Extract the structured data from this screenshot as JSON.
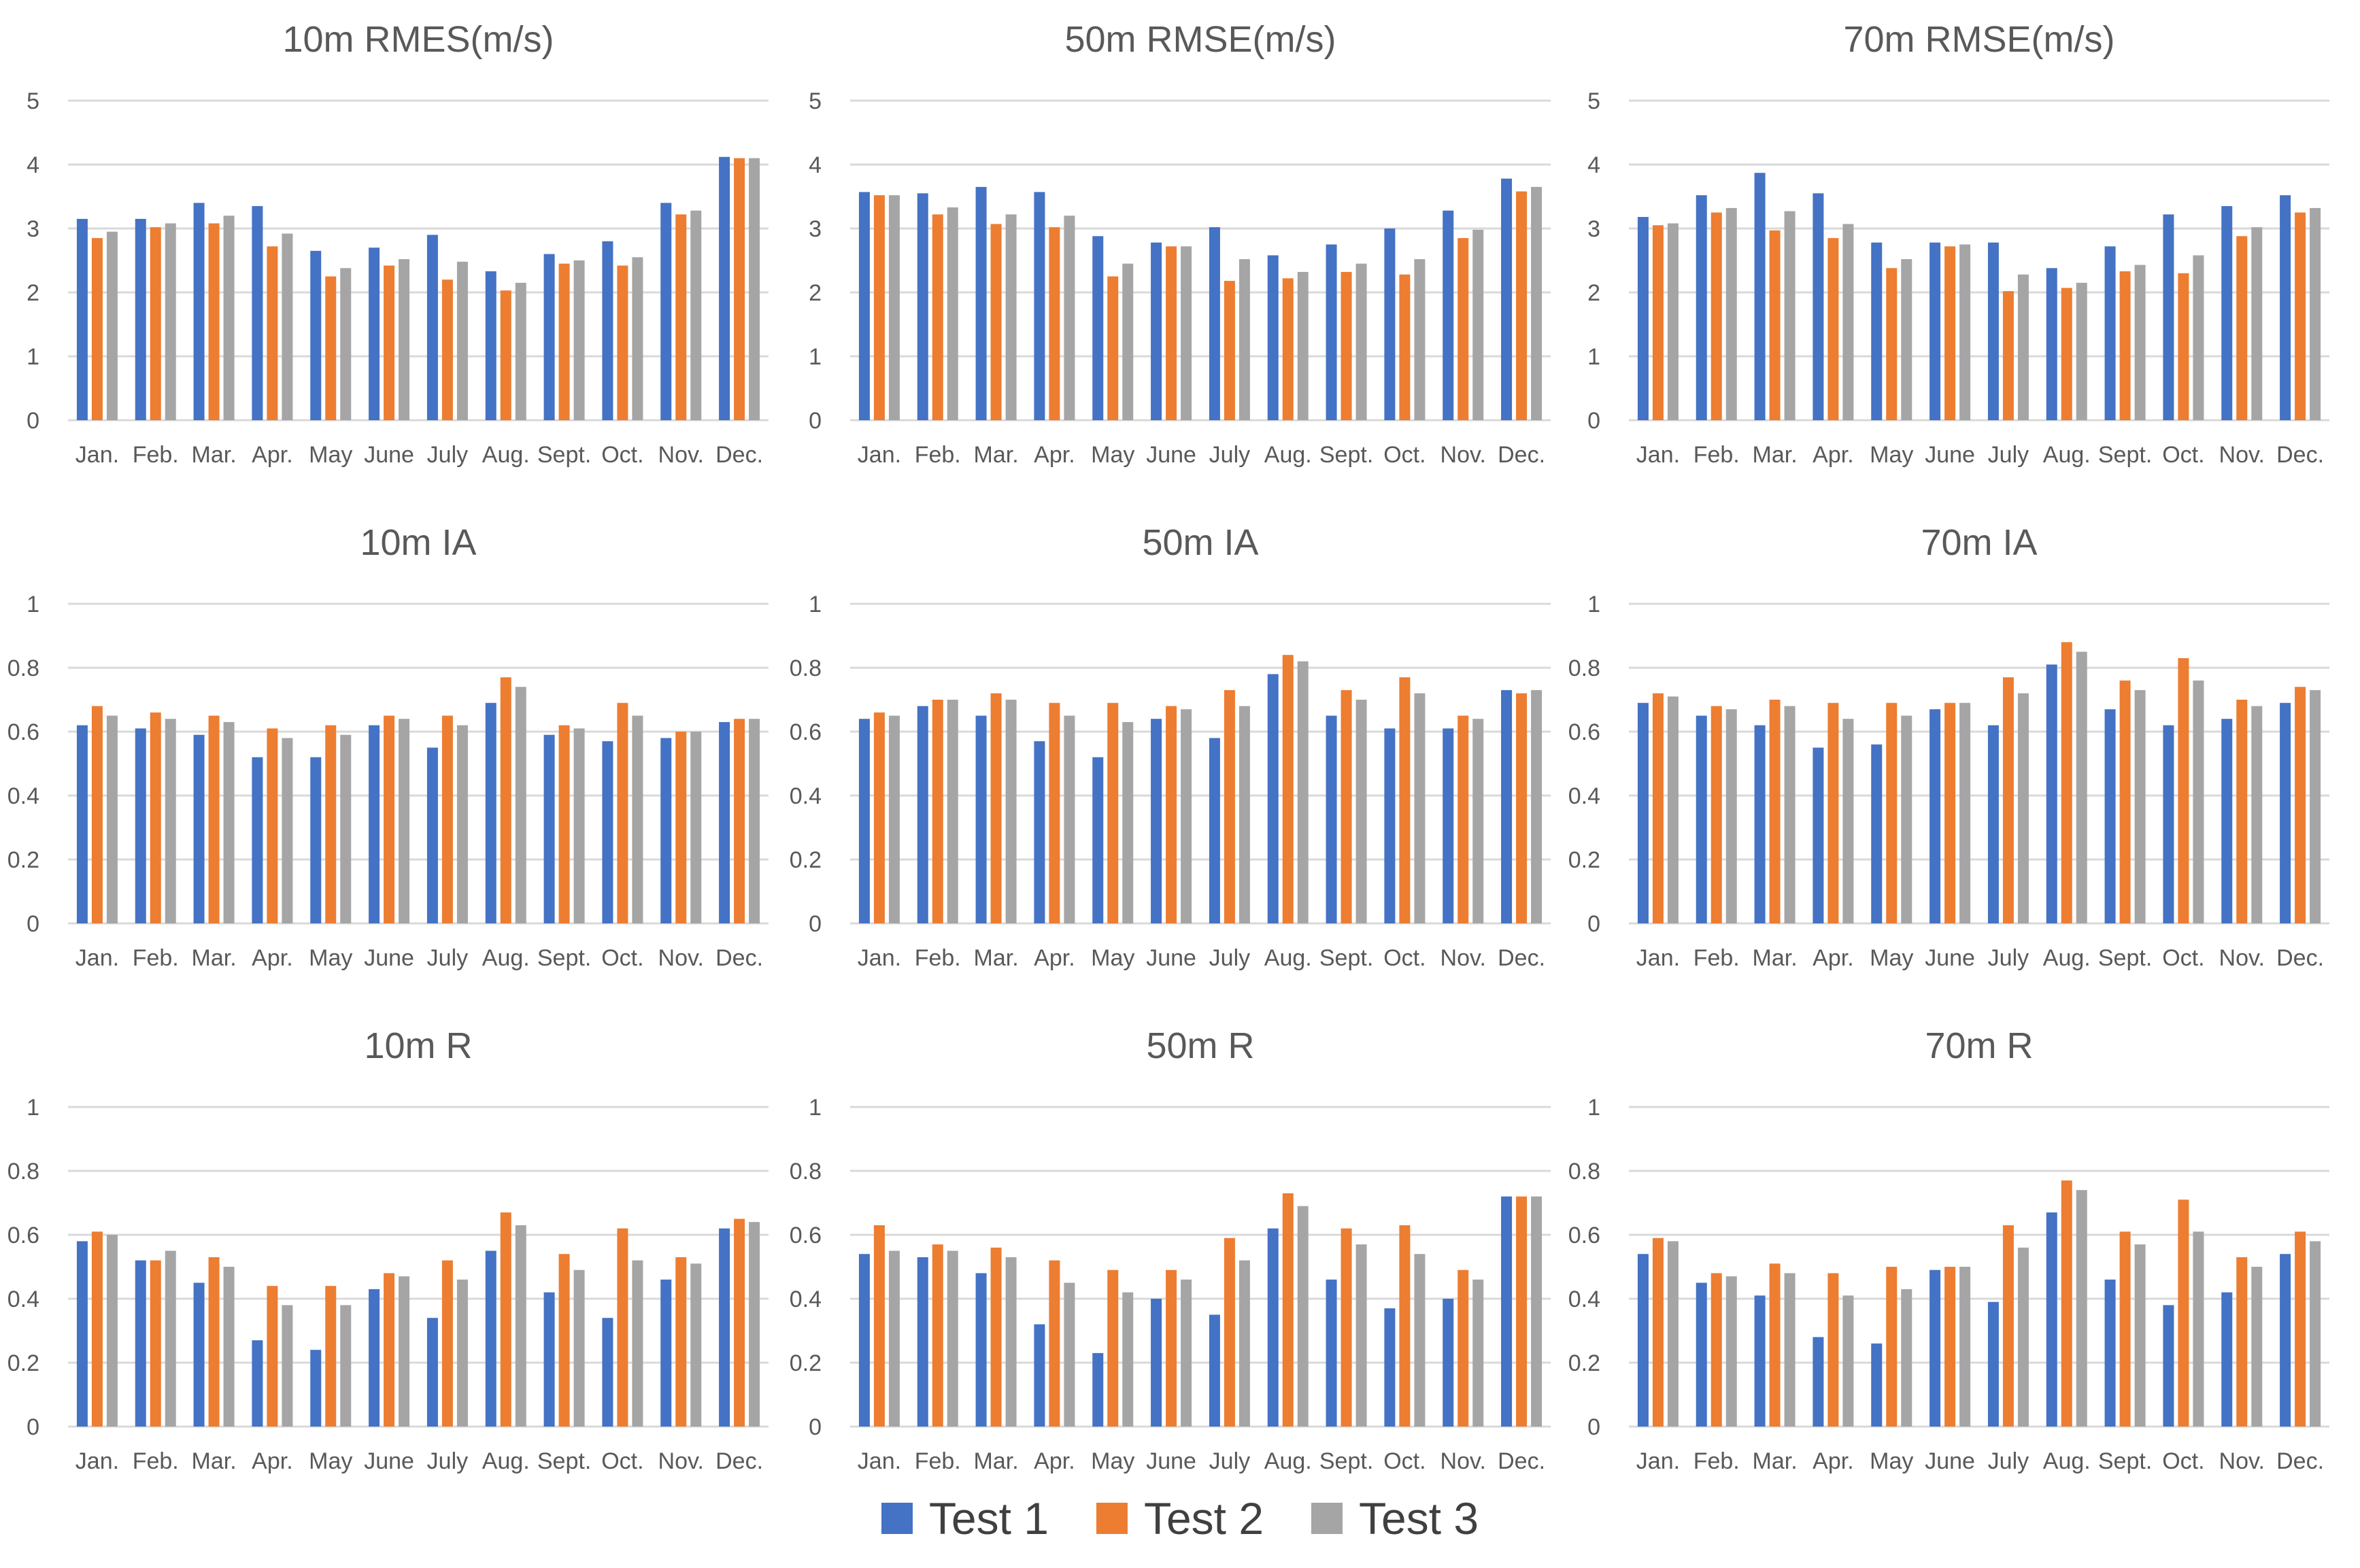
{
  "chart_data": [
    {
      "type": "bar",
      "title": "10m RMES(m/s)",
      "categories": [
        "Jan.",
        "Feb.",
        "Mar.",
        "Apr.",
        "May",
        "June",
        "July",
        "Aug.",
        "Sept.",
        "Oct.",
        "Nov.",
        "Dec."
      ],
      "ylim": [
        0,
        5
      ],
      "yticks": [
        {
          "v": 0,
          "label": "0"
        },
        {
          "v": 1,
          "label": "1"
        },
        {
          "v": 2,
          "label": "2"
        },
        {
          "v": 3,
          "label": "3"
        },
        {
          "v": 4,
          "label": "4"
        },
        {
          "v": 5,
          "label": "5"
        }
      ],
      "series": [
        {
          "name": "Test 1",
          "values": [
            3.15,
            3.15,
            3.4,
            3.35,
            2.65,
            2.7,
            2.9,
            2.33,
            2.6,
            2.8,
            3.4,
            4.12
          ]
        },
        {
          "name": "Test 2",
          "values": [
            2.85,
            3.02,
            3.08,
            2.72,
            2.25,
            2.42,
            2.2,
            2.03,
            2.45,
            2.42,
            3.22,
            4.1
          ]
        },
        {
          "name": "Test 3",
          "values": [
            2.95,
            3.08,
            3.2,
            2.92,
            2.38,
            2.52,
            2.48,
            2.15,
            2.5,
            2.55,
            3.28,
            4.1
          ]
        }
      ]
    },
    {
      "type": "bar",
      "title": "50m RMSE(m/s)",
      "categories": [
        "Jan.",
        "Feb.",
        "Mar.",
        "Apr.",
        "May",
        "June",
        "July",
        "Aug.",
        "Sept.",
        "Oct.",
        "Nov.",
        "Dec."
      ],
      "ylim": [
        0,
        5
      ],
      "yticks": [
        {
          "v": 0,
          "label": "0"
        },
        {
          "v": 1,
          "label": "1"
        },
        {
          "v": 2,
          "label": "2"
        },
        {
          "v": 3,
          "label": "3"
        },
        {
          "v": 4,
          "label": "4"
        },
        {
          "v": 5,
          "label": "5"
        }
      ],
      "series": [
        {
          "name": "Test 1",
          "values": [
            3.57,
            3.55,
            3.65,
            3.57,
            2.88,
            2.78,
            3.02,
            2.58,
            2.75,
            3.0,
            3.28,
            3.78
          ]
        },
        {
          "name": "Test 2",
          "values": [
            3.52,
            3.22,
            3.07,
            3.02,
            2.25,
            2.72,
            2.18,
            2.22,
            2.32,
            2.28,
            2.85,
            3.58
          ]
        },
        {
          "name": "Test 3",
          "values": [
            3.52,
            3.33,
            3.22,
            3.2,
            2.45,
            2.72,
            2.52,
            2.32,
            2.45,
            2.52,
            2.98,
            3.65
          ]
        }
      ]
    },
    {
      "type": "bar",
      "title": "70m RMSE(m/s)",
      "categories": [
        "Jan.",
        "Feb.",
        "Mar.",
        "Apr.",
        "May",
        "June",
        "July",
        "Aug.",
        "Sept.",
        "Oct.",
        "Nov.",
        "Dec."
      ],
      "ylim": [
        0,
        5
      ],
      "yticks": [
        {
          "v": 0,
          "label": "0"
        },
        {
          "v": 1,
          "label": "1"
        },
        {
          "v": 2,
          "label": "2"
        },
        {
          "v": 3,
          "label": "3"
        },
        {
          "v": 4,
          "label": "4"
        },
        {
          "v": 5,
          "label": "5"
        }
      ],
      "series": [
        {
          "name": "Test 1",
          "values": [
            3.18,
            3.52,
            3.87,
            3.55,
            2.78,
            2.78,
            2.78,
            2.38,
            2.72,
            3.22,
            3.35,
            3.52
          ]
        },
        {
          "name": "Test 2",
          "values": [
            3.05,
            3.25,
            2.97,
            2.85,
            2.38,
            2.72,
            2.02,
            2.07,
            2.33,
            2.3,
            2.88,
            3.25
          ]
        },
        {
          "name": "Test 3",
          "values": [
            3.08,
            3.32,
            3.27,
            3.07,
            2.52,
            2.75,
            2.28,
            2.15,
            2.43,
            2.58,
            3.02,
            3.32
          ]
        }
      ]
    },
    {
      "type": "bar",
      "title": "10m IA",
      "categories": [
        "Jan.",
        "Feb.",
        "Mar.",
        "Apr.",
        "May",
        "June",
        "July",
        "Aug.",
        "Sept.",
        "Oct.",
        "Nov.",
        "Dec."
      ],
      "ylim": [
        0,
        1
      ],
      "yticks": [
        {
          "v": 0,
          "label": "0"
        },
        {
          "v": 0.2,
          "label": "0.2"
        },
        {
          "v": 0.4,
          "label": "0.4"
        },
        {
          "v": 0.6,
          "label": "0.6"
        },
        {
          "v": 0.8,
          "label": "0.8"
        },
        {
          "v": 1,
          "label": "1"
        }
      ],
      "series": [
        {
          "name": "Test 1",
          "values": [
            0.62,
            0.61,
            0.59,
            0.52,
            0.52,
            0.62,
            0.55,
            0.69,
            0.59,
            0.57,
            0.58,
            0.63
          ]
        },
        {
          "name": "Test 2",
          "values": [
            0.68,
            0.66,
            0.65,
            0.61,
            0.62,
            0.65,
            0.65,
            0.77,
            0.62,
            0.69,
            0.6,
            0.64
          ]
        },
        {
          "name": "Test 3",
          "values": [
            0.65,
            0.64,
            0.63,
            0.58,
            0.59,
            0.64,
            0.62,
            0.74,
            0.61,
            0.65,
            0.6,
            0.64
          ]
        }
      ]
    },
    {
      "type": "bar",
      "title": "50m IA",
      "categories": [
        "Jan.",
        "Feb.",
        "Mar.",
        "Apr.",
        "May",
        "June",
        "July",
        "Aug.",
        "Sept.",
        "Oct.",
        "Nov.",
        "Dec."
      ],
      "ylim": [
        0,
        1
      ],
      "yticks": [
        {
          "v": 0,
          "label": "0"
        },
        {
          "v": 0.2,
          "label": "0.2"
        },
        {
          "v": 0.4,
          "label": "0.4"
        },
        {
          "v": 0.6,
          "label": "0.6"
        },
        {
          "v": 0.8,
          "label": "0.8"
        },
        {
          "v": 1,
          "label": "1"
        }
      ],
      "series": [
        {
          "name": "Test 1",
          "values": [
            0.64,
            0.68,
            0.65,
            0.57,
            0.52,
            0.64,
            0.58,
            0.78,
            0.65,
            0.61,
            0.61,
            0.73
          ]
        },
        {
          "name": "Test 2",
          "values": [
            0.66,
            0.7,
            0.72,
            0.69,
            0.69,
            0.68,
            0.73,
            0.84,
            0.73,
            0.77,
            0.65,
            0.72
          ]
        },
        {
          "name": "Test 3",
          "values": [
            0.65,
            0.7,
            0.7,
            0.65,
            0.63,
            0.67,
            0.68,
            0.82,
            0.7,
            0.72,
            0.64,
            0.73
          ]
        }
      ]
    },
    {
      "type": "bar",
      "title": "70m IA",
      "categories": [
        "Jan.",
        "Feb.",
        "Mar.",
        "Apr.",
        "May",
        "June",
        "July",
        "Aug.",
        "Sept.",
        "Oct.",
        "Nov.",
        "Dec."
      ],
      "ylim": [
        0,
        1
      ],
      "yticks": [
        {
          "v": 0,
          "label": "0"
        },
        {
          "v": 0.2,
          "label": "0.2"
        },
        {
          "v": 0.4,
          "label": "0.4"
        },
        {
          "v": 0.6,
          "label": "0.6"
        },
        {
          "v": 0.8,
          "label": "0.8"
        },
        {
          "v": 1,
          "label": "1"
        }
      ],
      "series": [
        {
          "name": "Test 1",
          "values": [
            0.69,
            0.65,
            0.62,
            0.55,
            0.56,
            0.67,
            0.62,
            0.81,
            0.67,
            0.62,
            0.64,
            0.69
          ]
        },
        {
          "name": "Test 2",
          "values": [
            0.72,
            0.68,
            0.7,
            0.69,
            0.69,
            0.69,
            0.77,
            0.88,
            0.76,
            0.83,
            0.7,
            0.74
          ]
        },
        {
          "name": "Test 3",
          "values": [
            0.71,
            0.67,
            0.68,
            0.64,
            0.65,
            0.69,
            0.72,
            0.85,
            0.73,
            0.76,
            0.68,
            0.73
          ]
        }
      ]
    },
    {
      "type": "bar",
      "title": "10m R",
      "categories": [
        "Jan.",
        "Feb.",
        "Mar.",
        "Apr.",
        "May",
        "June",
        "July",
        "Aug.",
        "Sept.",
        "Oct.",
        "Nov.",
        "Dec."
      ],
      "ylim": [
        0,
        1
      ],
      "yticks": [
        {
          "v": 0,
          "label": "0"
        },
        {
          "v": 0.2,
          "label": "0.2"
        },
        {
          "v": 0.4,
          "label": "0.4"
        },
        {
          "v": 0.6,
          "label": "0.6"
        },
        {
          "v": 0.8,
          "label": "0.8"
        },
        {
          "v": 1,
          "label": "1"
        }
      ],
      "series": [
        {
          "name": "Test 1",
          "values": [
            0.58,
            0.52,
            0.45,
            0.27,
            0.24,
            0.43,
            0.34,
            0.55,
            0.42,
            0.34,
            0.46,
            0.62
          ]
        },
        {
          "name": "Test 2",
          "values": [
            0.61,
            0.52,
            0.53,
            0.44,
            0.44,
            0.48,
            0.52,
            0.67,
            0.54,
            0.62,
            0.53,
            0.65
          ]
        },
        {
          "name": "Test 3",
          "values": [
            0.6,
            0.55,
            0.5,
            0.38,
            0.38,
            0.47,
            0.46,
            0.63,
            0.49,
            0.52,
            0.51,
            0.64
          ]
        }
      ]
    },
    {
      "type": "bar",
      "title": "50m R",
      "categories": [
        "Jan.",
        "Feb.",
        "Mar.",
        "Apr.",
        "May",
        "June",
        "July",
        "Aug.",
        "Sept.",
        "Oct.",
        "Nov.",
        "Dec."
      ],
      "ylim": [
        0,
        1
      ],
      "yticks": [
        {
          "v": 0,
          "label": "0"
        },
        {
          "v": 0.2,
          "label": "0.2"
        },
        {
          "v": 0.4,
          "label": "0.4"
        },
        {
          "v": 0.6,
          "label": "0.6"
        },
        {
          "v": 0.8,
          "label": "0.8"
        },
        {
          "v": 1,
          "label": "1"
        }
      ],
      "series": [
        {
          "name": "Test 1",
          "values": [
            0.54,
            0.53,
            0.48,
            0.32,
            0.23,
            0.4,
            0.35,
            0.62,
            0.46,
            0.37,
            0.4,
            0.72
          ]
        },
        {
          "name": "Test 2",
          "values": [
            0.63,
            0.57,
            0.56,
            0.52,
            0.49,
            0.49,
            0.59,
            0.73,
            0.62,
            0.63,
            0.49,
            0.72
          ]
        },
        {
          "name": "Test 3",
          "values": [
            0.55,
            0.55,
            0.53,
            0.45,
            0.42,
            0.46,
            0.52,
            0.69,
            0.57,
            0.54,
            0.46,
            0.72
          ]
        }
      ]
    },
    {
      "type": "bar",
      "title": "70m R",
      "categories": [
        "Jan.",
        "Feb.",
        "Mar.",
        "Apr.",
        "May",
        "June",
        "July",
        "Aug.",
        "Sept.",
        "Oct.",
        "Nov.",
        "Dec."
      ],
      "ylim": [
        0,
        1
      ],
      "yticks": [
        {
          "v": 0,
          "label": "0"
        },
        {
          "v": 0.2,
          "label": "0.2"
        },
        {
          "v": 0.4,
          "label": "0.4"
        },
        {
          "v": 0.6,
          "label": "0.6"
        },
        {
          "v": 0.8,
          "label": "0.8"
        },
        {
          "v": 1,
          "label": "1"
        }
      ],
      "series": [
        {
          "name": "Test 1",
          "values": [
            0.54,
            0.45,
            0.41,
            0.28,
            0.26,
            0.49,
            0.39,
            0.67,
            0.46,
            0.38,
            0.42,
            0.54
          ]
        },
        {
          "name": "Test 2",
          "values": [
            0.59,
            0.48,
            0.51,
            0.48,
            0.5,
            0.5,
            0.63,
            0.77,
            0.61,
            0.71,
            0.53,
            0.61
          ]
        },
        {
          "name": "Test 3",
          "values": [
            0.58,
            0.47,
            0.48,
            0.41,
            0.43,
            0.5,
            0.56,
            0.74,
            0.57,
            0.61,
            0.5,
            0.58
          ]
        }
      ]
    }
  ],
  "legend": [
    {
      "label": "Test 1",
      "color": "#4472C4"
    },
    {
      "label": "Test 2",
      "color": "#ED7D31"
    },
    {
      "label": "Test 3",
      "color": "#A5A5A5"
    }
  ]
}
